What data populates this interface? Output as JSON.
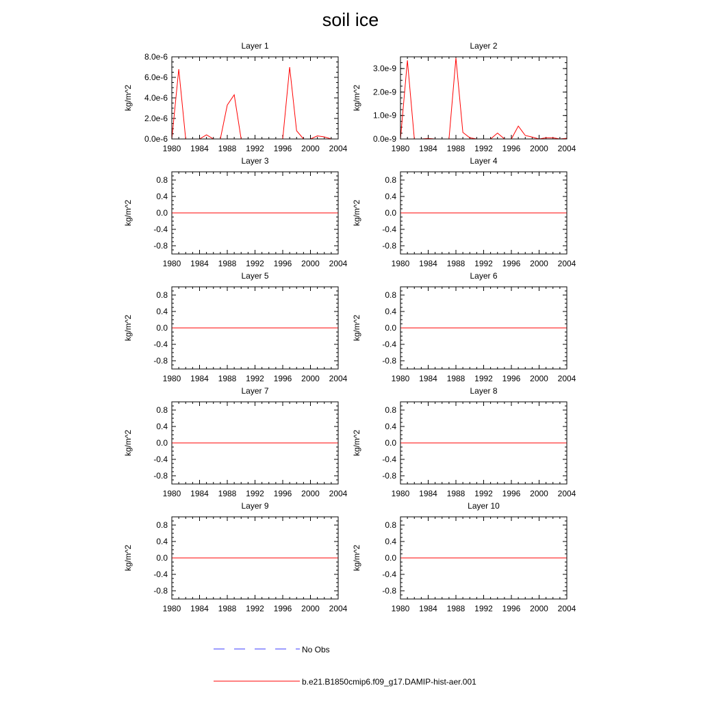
{
  "title": "soil ice",
  "colors": {
    "model": "#ff0000",
    "obs": "#3a3aff",
    "axis": "#000000"
  },
  "legend": {
    "obs_label": "No Obs",
    "model_label": "b.e21.B1850cmip6.f09_g17.DAMIP-hist-aer.001"
  },
  "chart_data": [
    {
      "type": "line",
      "title": "Layer 1",
      "ylabel": "kg/m^2",
      "xlim": [
        1980,
        2004
      ],
      "xticks": [
        1980,
        1984,
        1988,
        1992,
        1996,
        2000,
        2004
      ],
      "xtick_labels": [
        "1980",
        "1984",
        "1988",
        "1992",
        "1996",
        "2000",
        "2004"
      ],
      "ylim": [
        0,
        8e-06
      ],
      "yticks": [
        0,
        2e-06,
        4e-06,
        6e-06,
        8e-06
      ],
      "ytick_labels": [
        "0.0e-6",
        "2.0e-6",
        "4.0e-6",
        "6.0e-6",
        "8.0e-6"
      ],
      "series": [
        {
          "x": [
            1980,
            1981,
            1982,
            1983,
            1984,
            1985,
            1986,
            1987,
            1988,
            1989,
            1990,
            1991,
            1992,
            1993,
            1994,
            1995,
            1996,
            1997,
            1998,
            1999,
            2000,
            2001,
            2002,
            2003,
            2004
          ],
          "y": [
            0,
            6.8e-06,
            0,
            0,
            0,
            4e-07,
            0,
            0,
            3.3e-06,
            4.3e-06,
            0,
            0,
            0,
            0,
            0,
            0,
            0,
            7e-06,
            8e-07,
            0,
            0,
            3e-07,
            2e-07,
            0,
            0
          ]
        }
      ]
    },
    {
      "type": "line",
      "title": "Layer 2",
      "ylabel": "kg/m^2",
      "xlim": [
        1980,
        2004
      ],
      "xticks": [
        1980,
        1984,
        1988,
        1992,
        1996,
        2000,
        2004
      ],
      "xtick_labels": [
        "1980",
        "1984",
        "1988",
        "1992",
        "1996",
        "2000",
        "2004"
      ],
      "ylim": [
        0,
        3.5e-09
      ],
      "yticks": [
        0,
        1e-09,
        2e-09,
        3e-09
      ],
      "ytick_labels": [
        "0.0e-9",
        "1.0e-9",
        "2.0e-9",
        "3.0e-9"
      ],
      "series": [
        {
          "x": [
            1980,
            1981,
            1982,
            1983,
            1984,
            1985,
            1986,
            1987,
            1988,
            1989,
            1990,
            1991,
            1992,
            1993,
            1994,
            1995,
            1996,
            1997,
            1998,
            1999,
            2000,
            2001,
            2002,
            2003,
            2004
          ],
          "y": [
            0,
            3.35e-09,
            0,
            0,
            2e-11,
            0,
            0,
            0,
            3.45e-09,
            2.8e-10,
            5e-11,
            0,
            0,
            0,
            2.5e-10,
            0,
            0,
            5.5e-10,
            1.5e-10,
            8e-11,
            0,
            5e-11,
            5e-11,
            0,
            3e-11
          ]
        }
      ]
    },
    {
      "type": "line",
      "title": "Layer 3",
      "ylabel": "kg/m^2",
      "xlim": [
        1980,
        2004
      ],
      "xticks": [
        1980,
        1984,
        1988,
        1992,
        1996,
        2000,
        2004
      ],
      "xtick_labels": [
        "1980",
        "1984",
        "1988",
        "1992",
        "1996",
        "2000",
        "2004"
      ],
      "ylim": [
        -1,
        1
      ],
      "yticks": [
        -0.8,
        -0.4,
        0,
        0.4,
        0.8
      ],
      "ytick_labels": [
        "-0.8",
        "-0.4",
        "0.0",
        "0.4",
        "0.8"
      ],
      "series": [
        {
          "x": [
            1980,
            2004
          ],
          "y": [
            0,
            0
          ]
        }
      ]
    },
    {
      "type": "line",
      "title": "Layer 4",
      "ylabel": "kg/m^2",
      "xlim": [
        1980,
        2004
      ],
      "xticks": [
        1980,
        1984,
        1988,
        1992,
        1996,
        2000,
        2004
      ],
      "xtick_labels": [
        "1980",
        "1984",
        "1988",
        "1992",
        "1996",
        "2000",
        "2004"
      ],
      "ylim": [
        -1,
        1
      ],
      "yticks": [
        -0.8,
        -0.4,
        0,
        0.4,
        0.8
      ],
      "ytick_labels": [
        "-0.8",
        "-0.4",
        "0.0",
        "0.4",
        "0.8"
      ],
      "series": [
        {
          "x": [
            1980,
            2004
          ],
          "y": [
            0,
            0
          ]
        }
      ]
    },
    {
      "type": "line",
      "title": "Layer 5",
      "ylabel": "kg/m^2",
      "xlim": [
        1980,
        2004
      ],
      "xticks": [
        1980,
        1984,
        1988,
        1992,
        1996,
        2000,
        2004
      ],
      "xtick_labels": [
        "1980",
        "1984",
        "1988",
        "1992",
        "1996",
        "2000",
        "2004"
      ],
      "ylim": [
        -1,
        1
      ],
      "yticks": [
        -0.8,
        -0.4,
        0,
        0.4,
        0.8
      ],
      "ytick_labels": [
        "-0.8",
        "-0.4",
        "0.0",
        "0.4",
        "0.8"
      ],
      "series": [
        {
          "x": [
            1980,
            2004
          ],
          "y": [
            0,
            0
          ]
        }
      ]
    },
    {
      "type": "line",
      "title": "Layer 6",
      "ylabel": "kg/m^2",
      "xlim": [
        1980,
        2004
      ],
      "xticks": [
        1980,
        1984,
        1988,
        1992,
        1996,
        2000,
        2004
      ],
      "xtick_labels": [
        "1980",
        "1984",
        "1988",
        "1992",
        "1996",
        "2000",
        "2004"
      ],
      "ylim": [
        -1,
        1
      ],
      "yticks": [
        -0.8,
        -0.4,
        0,
        0.4,
        0.8
      ],
      "ytick_labels": [
        "-0.8",
        "-0.4",
        "0.0",
        "0.4",
        "0.8"
      ],
      "series": [
        {
          "x": [
            1980,
            2004
          ],
          "y": [
            0,
            0
          ]
        }
      ]
    },
    {
      "type": "line",
      "title": "Layer 7",
      "ylabel": "kg/m^2",
      "xlim": [
        1980,
        2004
      ],
      "xticks": [
        1980,
        1984,
        1988,
        1992,
        1996,
        2000,
        2004
      ],
      "xtick_labels": [
        "1980",
        "1984",
        "1988",
        "1992",
        "1996",
        "2000",
        "2004"
      ],
      "ylim": [
        -1,
        1
      ],
      "yticks": [
        -0.8,
        -0.4,
        0,
        0.4,
        0.8
      ],
      "ytick_labels": [
        "-0.8",
        "-0.4",
        "0.0",
        "0.4",
        "0.8"
      ],
      "series": [
        {
          "x": [
            1980,
            2004
          ],
          "y": [
            0,
            0
          ]
        }
      ]
    },
    {
      "type": "line",
      "title": "Layer 8",
      "ylabel": "kg/m^2",
      "xlim": [
        1980,
        2004
      ],
      "xticks": [
        1980,
        1984,
        1988,
        1992,
        1996,
        2000,
        2004
      ],
      "xtick_labels": [
        "1980",
        "1984",
        "1988",
        "1992",
        "1996",
        "2000",
        "2004"
      ],
      "ylim": [
        -1,
        1
      ],
      "yticks": [
        -0.8,
        -0.4,
        0,
        0.4,
        0.8
      ],
      "ytick_labels": [
        "-0.8",
        "-0.4",
        "0.0",
        "0.4",
        "0.8"
      ],
      "series": [
        {
          "x": [
            1980,
            2004
          ],
          "y": [
            0,
            0
          ]
        }
      ]
    },
    {
      "type": "line",
      "title": "Layer 9",
      "ylabel": "kg/m^2",
      "xlim": [
        1980,
        2004
      ],
      "xticks": [
        1980,
        1984,
        1988,
        1992,
        1996,
        2000,
        2004
      ],
      "xtick_labels": [
        "1980",
        "1984",
        "1988",
        "1992",
        "1996",
        "2000",
        "2004"
      ],
      "ylim": [
        -1,
        1
      ],
      "yticks": [
        -0.8,
        -0.4,
        0,
        0.4,
        0.8
      ],
      "ytick_labels": [
        "-0.8",
        "-0.4",
        "0.0",
        "0.4",
        "0.8"
      ],
      "series": [
        {
          "x": [
            1980,
            2004
          ],
          "y": [
            0,
            0
          ]
        }
      ]
    },
    {
      "type": "line",
      "title": "Layer 10",
      "ylabel": "kg/m^2",
      "xlim": [
        1980,
        2004
      ],
      "xticks": [
        1980,
        1984,
        1988,
        1992,
        1996,
        2000,
        2004
      ],
      "xtick_labels": [
        "1980",
        "1984",
        "1988",
        "1992",
        "1996",
        "2000",
        "2004"
      ],
      "ylim": [
        -1,
        1
      ],
      "yticks": [
        -0.8,
        -0.4,
        0,
        0.4,
        0.8
      ],
      "ytick_labels": [
        "-0.8",
        "-0.4",
        "0.0",
        "0.4",
        "0.8"
      ],
      "series": [
        {
          "x": [
            1980,
            2004
          ],
          "y": [
            0,
            0
          ]
        }
      ]
    }
  ]
}
